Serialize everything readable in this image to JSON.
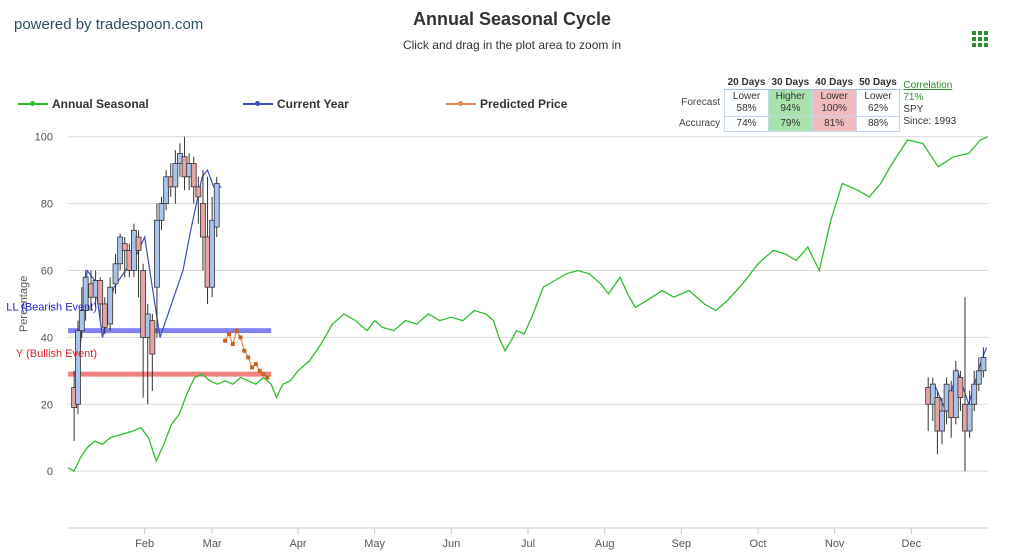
{
  "header": {
    "brand": "powered by tradespoon.com",
    "menu_icon": "grid-menu-icon"
  },
  "legend": {
    "annual": "Annual Seasonal",
    "current": "Current Year",
    "predicted": "Predicted Price"
  },
  "forecast_table": {
    "columns": [
      "20 Days",
      "30 Days",
      "40 Days",
      "50 Days"
    ],
    "forecast_label": "Forecast",
    "accuracy_label": "Accuracy",
    "forecast": [
      {
        "dir": "Lower",
        "pct": "58%",
        "tone": "none"
      },
      {
        "dir": "Higher",
        "pct": "94%",
        "tone": "green"
      },
      {
        "dir": "Lower",
        "pct": "100%",
        "tone": "red"
      },
      {
        "dir": "Lower",
        "pct": "62%",
        "tone": "none"
      }
    ],
    "accuracy": [
      {
        "value": "74%",
        "tone": "none"
      },
      {
        "value": "79%",
        "tone": "green"
      },
      {
        "value": "81%",
        "tone": "red"
      },
      {
        "value": "88%",
        "tone": "none"
      }
    ],
    "correlation_label": "Correlation",
    "correlation_value": "71%",
    "symbol": "SPY",
    "since": "Since: 1993"
  },
  "colors": {
    "annual": "#2ebd2e",
    "current": "#3a4fc0",
    "predicted": "#e8885a",
    "sell_band": "#7c7cf0",
    "buy_band": "#f07b7b",
    "up_candle": "#a8c4ec",
    "down_candle": "#e8a4a4",
    "grid": "#d8d8d8"
  },
  "chart_data": {
    "type": "line",
    "title": "Annual Seasonal Cycle",
    "subtitle": "Click and drag in the plot area to zoom in",
    "xlabel": "",
    "ylabel": "Percentage",
    "ylim": [
      -17,
      102
    ],
    "yticks": [
      0,
      20,
      40,
      60,
      80,
      100
    ],
    "xlim": [
      0,
      12
    ],
    "months": [
      "Feb",
      "Mar",
      "Apr",
      "May",
      "Jun",
      "Jul",
      "Aug",
      "Sep",
      "Oct",
      "Nov",
      "Dec"
    ],
    "month_positions": [
      1,
      1.88,
      3,
      4,
      5,
      6,
      7,
      8,
      9,
      10,
      11
    ],
    "grid": true,
    "legend_position": "top-left",
    "series": [
      {
        "name": "Annual Seasonal",
        "x": [
          0,
          0.08,
          0.16,
          0.25,
          0.35,
          0.45,
          0.55,
          0.7,
          0.85,
          0.95,
          1.05,
          1.15,
          1.25,
          1.35,
          1.45,
          1.55,
          1.65,
          1.75,
          1.85,
          1.95,
          2.05,
          2.15,
          2.25,
          2.35,
          2.45,
          2.55,
          2.65,
          2.72,
          2.8,
          2.9,
          3.0,
          3.15,
          3.3,
          3.45,
          3.6,
          3.75,
          3.9,
          4.0,
          4.1,
          4.25,
          4.4,
          4.55,
          4.7,
          4.85,
          5.0,
          5.15,
          5.3,
          5.45,
          5.55,
          5.62,
          5.7,
          5.78,
          5.85,
          5.95,
          6.05,
          6.2,
          6.35,
          6.5,
          6.65,
          6.8,
          6.95,
          7.05,
          7.2,
          7.3,
          7.4,
          7.55,
          7.75,
          7.9,
          8.1,
          8.3,
          8.45,
          8.6,
          8.8,
          9.0,
          9.2,
          9.35,
          9.5,
          9.65,
          9.8,
          9.95,
          10.1,
          10.3,
          10.45,
          10.6,
          10.75,
          10.95,
          11.15,
          11.35,
          11.55,
          11.75,
          11.9,
          12.0
        ],
        "y": [
          1,
          0,
          4,
          7,
          9,
          8,
          10,
          11,
          12,
          13,
          10,
          3,
          8,
          14,
          17,
          23,
          28,
          29,
          27,
          26,
          27,
          26,
          28,
          27,
          26,
          28,
          26,
          22,
          26,
          27,
          30,
          33,
          38,
          44,
          47,
          45,
          42,
          45,
          43,
          42,
          45,
          44,
          47,
          45,
          46,
          45,
          48,
          47,
          45,
          40,
          36,
          39,
          42,
          41,
          46,
          55,
          57,
          59,
          60,
          59,
          56,
          53,
          58,
          53,
          49,
          51,
          54,
          52,
          54,
          50,
          48,
          51,
          56,
          62,
          66,
          65,
          63,
          67,
          60,
          75,
          86,
          84,
          82,
          86,
          92,
          99,
          98,
          91,
          94,
          95,
          99,
          100
        ]
      },
      {
        "name": "Current Year",
        "x": [
          0.08,
          0.15,
          0.25,
          0.35,
          0.45,
          0.6,
          0.75,
          0.9,
          1.0,
          1.1,
          1.2,
          1.35,
          1.5,
          1.6,
          1.75,
          1.82,
          1.9,
          2.0
        ],
        "y": [
          20,
          35,
          60,
          57,
          40,
          55,
          60,
          65,
          70,
          55,
          40,
          50,
          60,
          72,
          88,
          90,
          85,
          85
        ]
      },
      {
        "name": "Predicted Price",
        "x": [
          2.05,
          2.1,
          2.15,
          2.2,
          2.25,
          2.3,
          2.35,
          2.4,
          2.45,
          2.5,
          2.55,
          2.6
        ],
        "y": [
          39,
          41,
          38,
          42,
          40,
          36,
          34,
          31,
          32,
          30,
          29,
          28
        ]
      },
      {
        "name": "Current Year",
        "x": [
          11.2,
          11.3,
          11.45,
          11.6,
          11.75,
          11.9,
          11.98
        ],
        "y": [
          22,
          26,
          18,
          30,
          20,
          32,
          37
        ]
      }
    ],
    "candles_left": [
      {
        "x": 0.08,
        "o": 25,
        "c": 19,
        "h": 30,
        "l": 9
      },
      {
        "x": 0.13,
        "o": 20,
        "c": 42,
        "h": 45,
        "l": 17
      },
      {
        "x": 0.18,
        "o": 42,
        "c": 48,
        "h": 55,
        "l": 40
      },
      {
        "x": 0.23,
        "o": 48,
        "c": 58,
        "h": 60,
        "l": 45
      },
      {
        "x": 0.3,
        "o": 56,
        "c": 52,
        "h": 60,
        "l": 48
      },
      {
        "x": 0.36,
        "o": 52,
        "c": 57,
        "h": 60,
        "l": 49
      },
      {
        "x": 0.42,
        "o": 57,
        "c": 50,
        "h": 58,
        "l": 45
      },
      {
        "x": 0.48,
        "o": 50,
        "c": 43,
        "h": 52,
        "l": 41
      },
      {
        "x": 0.55,
        "o": 44,
        "c": 55,
        "h": 58,
        "l": 42
      },
      {
        "x": 0.62,
        "o": 56,
        "c": 62,
        "h": 65,
        "l": 53
      },
      {
        "x": 0.68,
        "o": 62,
        "c": 70,
        "h": 71,
        "l": 60
      },
      {
        "x": 0.74,
        "o": 68,
        "c": 66,
        "h": 70,
        "l": 58
      },
      {
        "x": 0.8,
        "o": 66,
        "c": 60,
        "h": 68,
        "l": 58
      },
      {
        "x": 0.86,
        "o": 60,
        "c": 72,
        "h": 74,
        "l": 58
      },
      {
        "x": 0.92,
        "o": 70,
        "c": 66,
        "h": 72,
        "l": 52
      },
      {
        "x": 0.98,
        "o": 60,
        "c": 40,
        "h": 62,
        "l": 22
      },
      {
        "x": 1.04,
        "o": 40,
        "c": 47,
        "h": 50,
        "l": 20
      },
      {
        "x": 1.1,
        "o": 45,
        "c": 35,
        "h": 47,
        "l": 24
      },
      {
        "x": 1.16,
        "o": 55,
        "c": 75,
        "h": 80,
        "l": 40
      },
      {
        "x": 1.22,
        "o": 75,
        "c": 80,
        "h": 82,
        "l": 72
      },
      {
        "x": 1.28,
        "o": 80,
        "c": 88,
        "h": 90,
        "l": 78
      },
      {
        "x": 1.34,
        "o": 88,
        "c": 85,
        "h": 92,
        "l": 82
      },
      {
        "x": 1.4,
        "o": 85,
        "c": 92,
        "h": 96,
        "l": 80
      },
      {
        "x": 1.46,
        "o": 92,
        "c": 95,
        "h": 98,
        "l": 88
      },
      {
        "x": 1.52,
        "o": 94,
        "c": 88,
        "h": 100,
        "l": 84
      },
      {
        "x": 1.58,
        "o": 88,
        "c": 92,
        "h": 95,
        "l": 84
      },
      {
        "x": 1.64,
        "o": 92,
        "c": 85,
        "h": 94,
        "l": 80
      },
      {
        "x": 1.7,
        "o": 85,
        "c": 82,
        "h": 88,
        "l": 74
      },
      {
        "x": 1.76,
        "o": 80,
        "c": 70,
        "h": 90,
        "l": 60
      },
      {
        "x": 1.82,
        "o": 70,
        "c": 55,
        "h": 88,
        "l": 50
      },
      {
        "x": 1.88,
        "o": 55,
        "c": 75,
        "h": 82,
        "l": 52
      },
      {
        "x": 1.94,
        "o": 73,
        "c": 86,
        "h": 88,
        "l": 70
      }
    ],
    "candles_right": [
      {
        "x": 11.22,
        "o": 25,
        "c": 20,
        "h": 28,
        "l": 12
      },
      {
        "x": 11.28,
        "o": 20,
        "c": 26,
        "h": 28,
        "l": 15
      },
      {
        "x": 11.34,
        "o": 22,
        "c": 12,
        "h": 24,
        "l": 5
      },
      {
        "x": 11.4,
        "o": 12,
        "c": 18,
        "h": 22,
        "l": 8
      },
      {
        "x": 11.46,
        "o": 18,
        "c": 26,
        "h": 28,
        "l": 14
      },
      {
        "x": 11.52,
        "o": 24,
        "c": 16,
        "h": 27,
        "l": 10
      },
      {
        "x": 11.58,
        "o": 16,
        "c": 30,
        "h": 33,
        "l": 14
      },
      {
        "x": 11.64,
        "o": 28,
        "c": 22,
        "h": 30,
        "l": 18
      },
      {
        "x": 11.7,
        "o": 20,
        "c": 12,
        "h": 52,
        "l": 0
      },
      {
        "x": 11.76,
        "o": 12,
        "c": 20,
        "h": 24,
        "l": 10
      },
      {
        "x": 11.82,
        "o": 20,
        "c": 26,
        "h": 30,
        "l": 18
      },
      {
        "x": 11.88,
        "o": 26,
        "c": 30,
        "h": 34,
        "l": 24
      },
      {
        "x": 11.94,
        "o": 30,
        "c": 34,
        "h": 37,
        "l": 28
      }
    ],
    "bands": [
      {
        "label": "LL (Bearish Event)",
        "y": 42,
        "x_end": 2.65,
        "color": "#7c7cf0",
        "text_color": "#1f1fd0"
      },
      {
        "label": "Y (Bullish Event)",
        "y": 29,
        "x_end": 2.65,
        "color": "#f07b7b",
        "text_color": "#e0202a"
      }
    ]
  }
}
